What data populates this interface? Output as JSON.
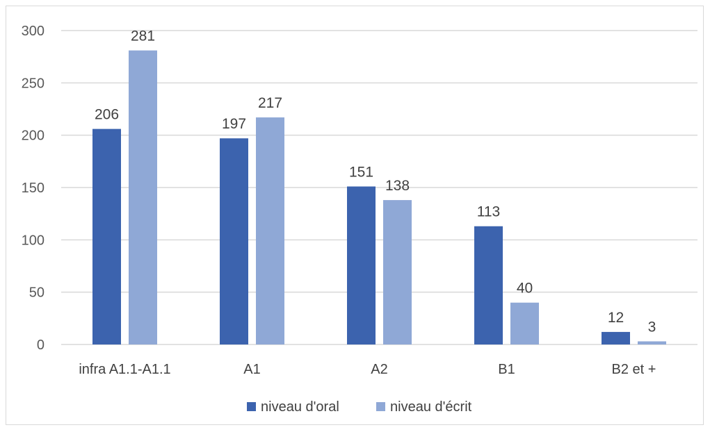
{
  "chart_data": {
    "type": "bar",
    "title": "",
    "xlabel": "",
    "ylabel": "",
    "categories": [
      "infra A1.1-A1.1",
      "A1",
      "A2",
      "B1",
      "B2 et +"
    ],
    "series": [
      {
        "name": "niveau d'oral",
        "values": [
          206,
          197,
          151,
          113,
          12
        ],
        "color": "#3c63ae"
      },
      {
        "name": "niveau d'écrit",
        "values": [
          281,
          217,
          138,
          40,
          3
        ],
        "color": "#8fa8d6"
      }
    ],
    "ylim": [
      0,
      300
    ],
    "yticks": [
      0,
      50,
      100,
      150,
      200,
      250,
      300
    ],
    "grid": true,
    "legend_position": "bottom",
    "gridline_color": "#d9d9d9"
  }
}
